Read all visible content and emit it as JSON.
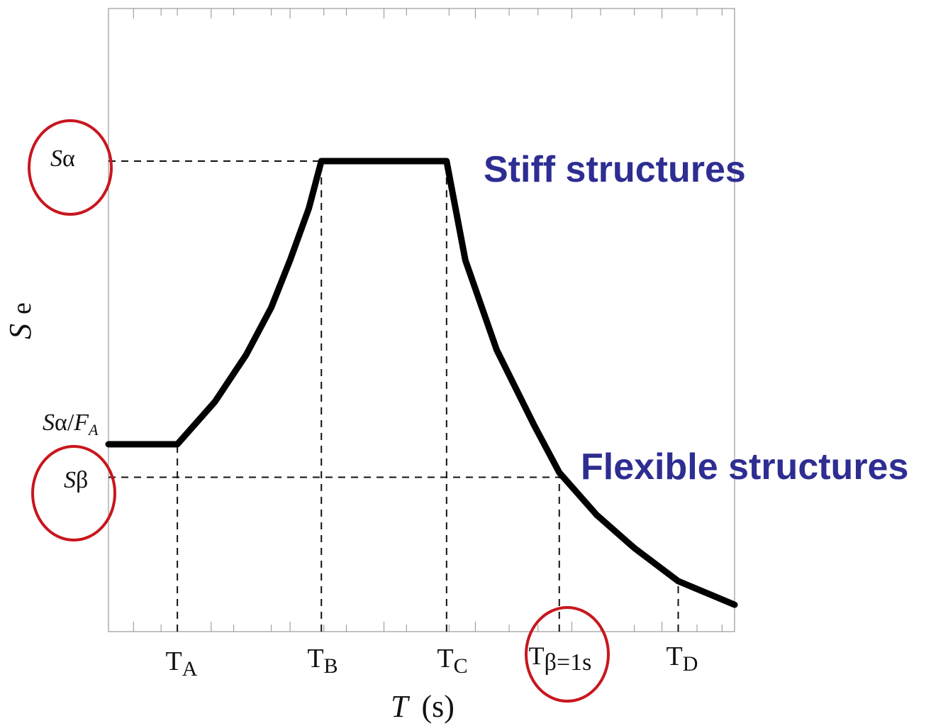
{
  "chart_data": {
    "type": "line",
    "xlabel": "T (s)",
    "xlabel_var": "T",
    "xlabel_unit": "(s)",
    "ylabel": "Se",
    "ylabel_main": "S",
    "ylabel_sub": "e",
    "grid": false,
    "legend": "none",
    "colors": {
      "curve": "#000000",
      "guide": "#111111",
      "axis": "#777777",
      "annotation": "#2e2d92",
      "highlight": "#c8161d"
    },
    "x_ticks": [
      {
        "key": "TA",
        "main": "T",
        "sub": "A",
        "x": 0.55
      },
      {
        "key": "TB",
        "main": "T",
        "sub": "B",
        "x": 1.7
      },
      {
        "key": "TC",
        "main": "T",
        "sub": "C",
        "x": 2.7
      },
      {
        "key": "Tbeta",
        "main": "T",
        "sub": "β=1s",
        "x": 3.6
      },
      {
        "key": "TD",
        "main": "T",
        "sub": "D",
        "x": 4.55
      }
    ],
    "y_ticks": [
      {
        "key": "Salpha",
        "main": "S",
        "sub": "α",
        "y": 1.0
      },
      {
        "key": "SalphaFA",
        "main": "S",
        "mid": "α/",
        "italic": "F",
        "sub": "A",
        "y": 0.4
      },
      {
        "key": "Sbeta",
        "main": "S",
        "sub": "β",
        "y": 0.33
      }
    ],
    "series": [
      {
        "x": [
          0,
          0.55,
          0.85,
          1.1,
          1.3,
          1.45,
          1.6,
          1.7,
          2.7,
          2.85,
          3.1,
          3.4,
          3.6,
          3.9,
          4.2,
          4.55,
          5.0
        ],
        "y": [
          0.4,
          0.4,
          0.49,
          0.59,
          0.69,
          0.79,
          0.9,
          1.0,
          1.0,
          0.79,
          0.6,
          0.44,
          0.34,
          0.25,
          0.18,
          0.11,
          0.06
        ]
      }
    ],
    "annotations": [
      {
        "key": "stiff",
        "text": "Stiff structures"
      },
      {
        "key": "flexible",
        "text": "Flexible structures"
      }
    ],
    "xlim": [
      0,
      5
    ],
    "ylim": [
      0,
      1
    ]
  }
}
